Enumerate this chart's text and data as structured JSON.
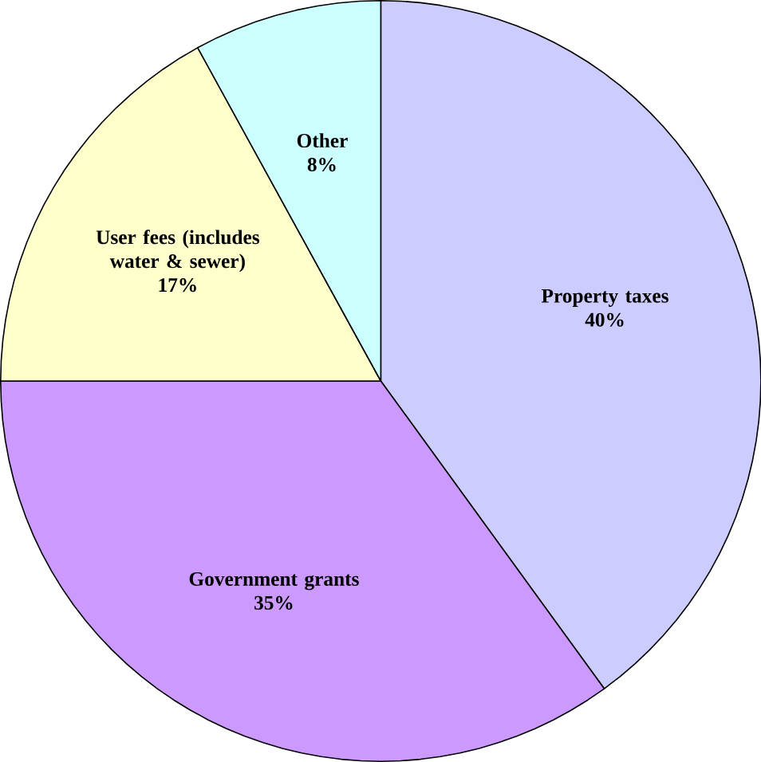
{
  "chart_data": {
    "type": "pie",
    "categories": [
      "Property taxes",
      "Government grants",
      "User fees (includes water & sewer)",
      "Other"
    ],
    "values": [
      40,
      35,
      17,
      8
    ],
    "value_labels": [
      "40%",
      "35%",
      "17%",
      "8%"
    ],
    "colors": [
      "#ccccff",
      "#cc99ff",
      "#ffffcc",
      "#ccffff"
    ],
    "legend": false
  }
}
